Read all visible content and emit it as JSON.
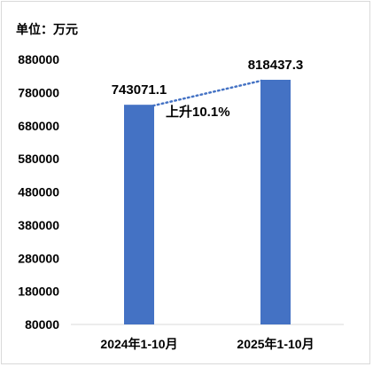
{
  "chart_data": {
    "type": "bar",
    "title": "",
    "unit_label": "单位：万元",
    "categories": [
      "2024年1-10月",
      "2025年1-10月"
    ],
    "values": [
      743071.1,
      818437.3
    ],
    "value_labels": [
      "743071.1",
      "818437.3"
    ],
    "ylim": [
      80000,
      880000
    ],
    "yticks": [
      "80000",
      "180000",
      "280000",
      "380000",
      "480000",
      "580000",
      "680000",
      "780000",
      "880000"
    ],
    "grid": false,
    "annotation": "上升10.1%",
    "bar_color": "#4472c4",
    "trend_color": "#4472c4"
  }
}
